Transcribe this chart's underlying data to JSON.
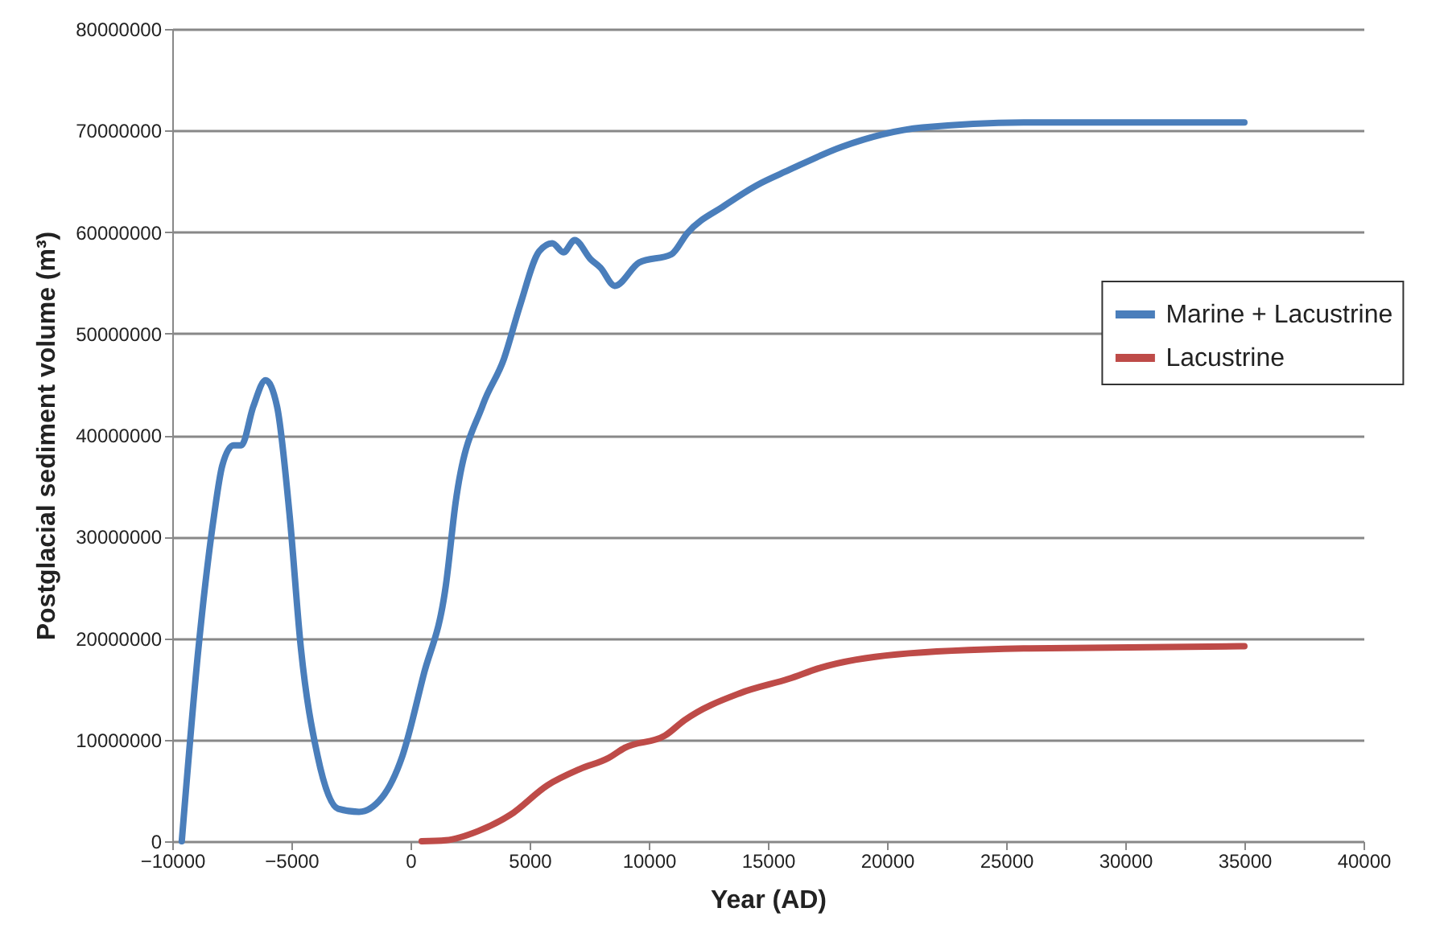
{
  "chart_data": {
    "type": "line",
    "xlabel": "Year (AD)",
    "ylabel": "Postglacial sediment volume (m³)",
    "xlim": [
      -10000,
      40000
    ],
    "xticks": [
      -10000,
      -5000,
      0,
      5000,
      10000,
      15000,
      20000,
      25000,
      30000,
      35000,
      40000
    ],
    "ylim": [
      0,
      80000000
    ],
    "yticks": [
      0,
      10000000,
      20000000,
      30000000,
      40000000,
      50000000,
      60000000,
      70000000,
      80000000
    ],
    "grid": "y",
    "legend": "right",
    "marker": "none",
    "line_style": "solid",
    "series": [
      {
        "name": "Marine + Lacustrine",
        "color": "#4a7ebb",
        "x": [
          -9600,
          -8900,
          -8250,
          -7900,
          -7430,
          -7100,
          -6600,
          -6080,
          -5600,
          -5070,
          -4600,
          -3900,
          -3040,
          -2160,
          -1200,
          -340,
          540,
          1490,
          1890,
          3040,
          3920,
          4600,
          5400,
          5950,
          6420,
          6890,
          7570,
          7970,
          8580,
          9600,
          10950,
          11620,
          13180,
          14530,
          15880,
          18110,
          21490,
          26000,
          35000
        ],
        "values": [
          0,
          19000000,
          32000000,
          37000000,
          39000000,
          39000000,
          42800000,
          45400000,
          42800000,
          32000000,
          19000000,
          8400000,
          3200000,
          2900000,
          4300000,
          8400000,
          16300000,
          25300000,
          33300000,
          43000000,
          47500000,
          52800000,
          58100000,
          58900000,
          58000000,
          59200000,
          57300000,
          56500000,
          54700000,
          57000000,
          57800000,
          59900000,
          62600000,
          64600000,
          66100000,
          68400000,
          70300000,
          70800000,
          70800000
        ]
      },
      {
        "name": "Lacustrine",
        "color": "#be4b48",
        "x": [
          470,
          1490,
          2840,
          4190,
          5740,
          7100,
          8310,
          8990,
          10680,
          11490,
          13850,
          15880,
          17230,
          20400,
          26000,
          35000
        ],
        "values": [
          0,
          100000,
          1000000,
          2600000,
          5500000,
          7100000,
          8200000,
          9200000,
          10400000,
          11900000,
          14600000,
          16000000,
          17100000,
          18400000,
          19000000,
          19200000
        ]
      }
    ]
  }
}
